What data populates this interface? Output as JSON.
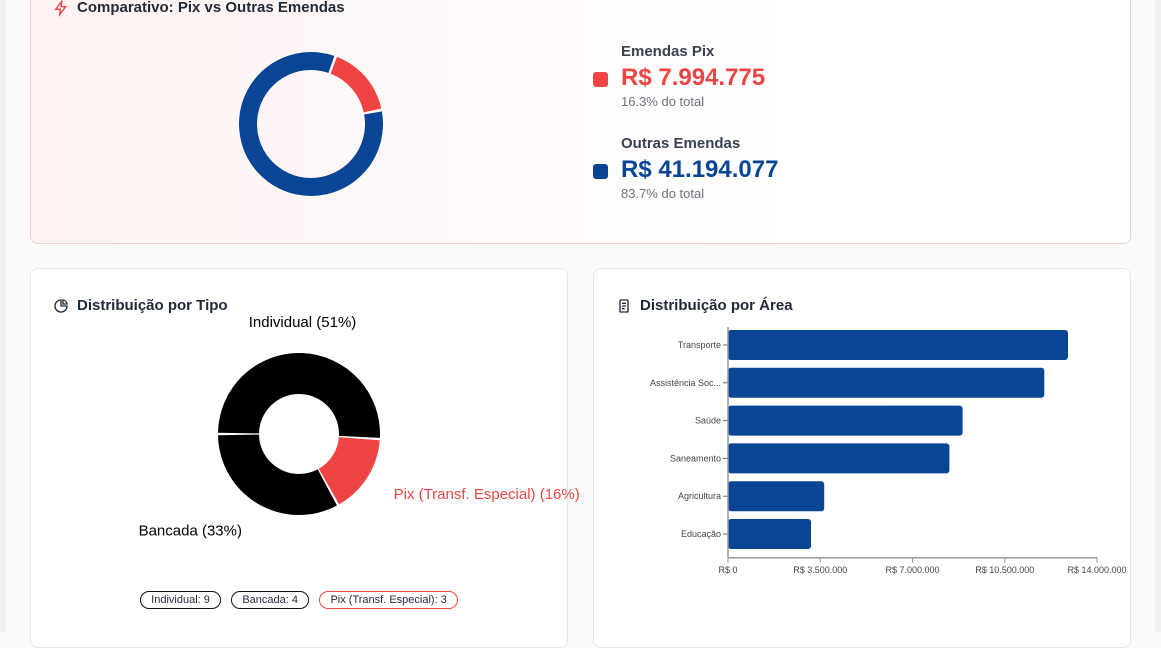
{
  "comparison": {
    "title": "Comparativo: Pix vs Outras Emendas",
    "pix": {
      "label": "Emendas Pix",
      "value": "R$ 7.994.775",
      "percent_text": "16.3% do total",
      "percent": 16.3,
      "color": "#ef4444"
    },
    "other": {
      "label": "Outras Emendas",
      "value": "R$ 41.194.077",
      "percent_text": "83.7% do total",
      "percent": 83.7,
      "color": "#084594"
    }
  },
  "by_type": {
    "title": "Distribuição por Tipo",
    "slices": [
      {
        "label": "Individual (51%)",
        "percent": 51,
        "color": "#000000"
      },
      {
        "label": "Pix (Transf. Especial) (16%)",
        "percent": 16,
        "color": "#ef4444"
      },
      {
        "label": "Bancada (33%)",
        "percent": 33,
        "color": "#000000"
      }
    ],
    "badges": [
      "Individual: 9",
      "Bancada: 4",
      "Pix (Transf. Especial): 3"
    ]
  },
  "chart_data": {
    "type": "bar",
    "orientation": "horizontal",
    "title": "Distribuição por Área",
    "categories": [
      "Transporte",
      "Assistência Soc...",
      "Saúde",
      "Saneamento",
      "Agricultura",
      "Educação"
    ],
    "values": [
      12900000,
      12000000,
      8900000,
      8400000,
      3650000,
      3150000
    ],
    "xlim": [
      0,
      14000000
    ],
    "xticks": [
      "R$ 0",
      "R$ 3.500.000",
      "R$ 7.000.000",
      "R$ 10.500.000",
      "R$ 14.000.000"
    ],
    "color": "#084594",
    "grid": false
  }
}
